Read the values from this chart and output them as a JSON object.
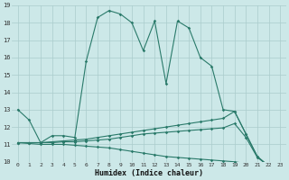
{
  "xlabel": "Humidex (Indice chaleur)",
  "bg_color": "#cce8e8",
  "grid_color": "#aacccc",
  "line_color": "#2a7a6a",
  "xlim": [
    -0.5,
    23.5
  ],
  "ylim": [
    10,
    19
  ],
  "xticks": [
    0,
    1,
    2,
    3,
    4,
    5,
    6,
    7,
    8,
    9,
    10,
    11,
    12,
    13,
    14,
    15,
    16,
    17,
    18,
    19,
    20,
    21,
    22,
    23
  ],
  "yticks": [
    10,
    11,
    12,
    13,
    14,
    15,
    16,
    17,
    18,
    19
  ],
  "line1_x": [
    0,
    1,
    2,
    3,
    4,
    5,
    6,
    7,
    8,
    9,
    10,
    11,
    12,
    13,
    14,
    15,
    16,
    17,
    18,
    19,
    20,
    21,
    22,
    23
  ],
  "line1_y": [
    13.0,
    12.4,
    11.1,
    11.5,
    11.5,
    11.4,
    15.8,
    18.3,
    18.7,
    18.5,
    18.0,
    16.4,
    18.1,
    14.5,
    18.1,
    17.7,
    16.0,
    15.5,
    13.0,
    12.9,
    11.6,
    10.3,
    9.75,
    9.75
  ],
  "line2_x": [
    0,
    1,
    2,
    3,
    4,
    5,
    6,
    7,
    8,
    9,
    10,
    11,
    12,
    13,
    14,
    15,
    16,
    17,
    18,
    19,
    20,
    21,
    22,
    23
  ],
  "line2_y": [
    11.1,
    11.1,
    11.1,
    11.15,
    11.2,
    11.25,
    11.3,
    11.4,
    11.5,
    11.6,
    11.7,
    11.8,
    11.9,
    12.0,
    12.1,
    12.2,
    12.3,
    12.4,
    12.5,
    12.9,
    11.6,
    10.3,
    9.75,
    9.75
  ],
  "line3_x": [
    0,
    1,
    2,
    3,
    4,
    5,
    6,
    7,
    8,
    9,
    10,
    11,
    12,
    13,
    14,
    15,
    16,
    17,
    18,
    19,
    20,
    21,
    22,
    23
  ],
  "line3_y": [
    11.1,
    11.1,
    11.1,
    11.1,
    11.15,
    11.15,
    11.2,
    11.25,
    11.3,
    11.4,
    11.5,
    11.6,
    11.65,
    11.7,
    11.75,
    11.8,
    11.85,
    11.9,
    11.95,
    12.2,
    11.4,
    10.25,
    9.75,
    9.75
  ],
  "line4_x": [
    0,
    1,
    2,
    3,
    4,
    5,
    6,
    7,
    8,
    9,
    10,
    11,
    12,
    13,
    14,
    15,
    16,
    17,
    18,
    19,
    20,
    21,
    22,
    23
  ],
  "line4_y": [
    11.1,
    11.05,
    11.0,
    11.0,
    11.0,
    10.95,
    10.9,
    10.85,
    10.8,
    10.7,
    10.6,
    10.5,
    10.4,
    10.3,
    10.25,
    10.2,
    10.15,
    10.1,
    10.05,
    10.0,
    9.9,
    9.8,
    9.75,
    9.75
  ]
}
